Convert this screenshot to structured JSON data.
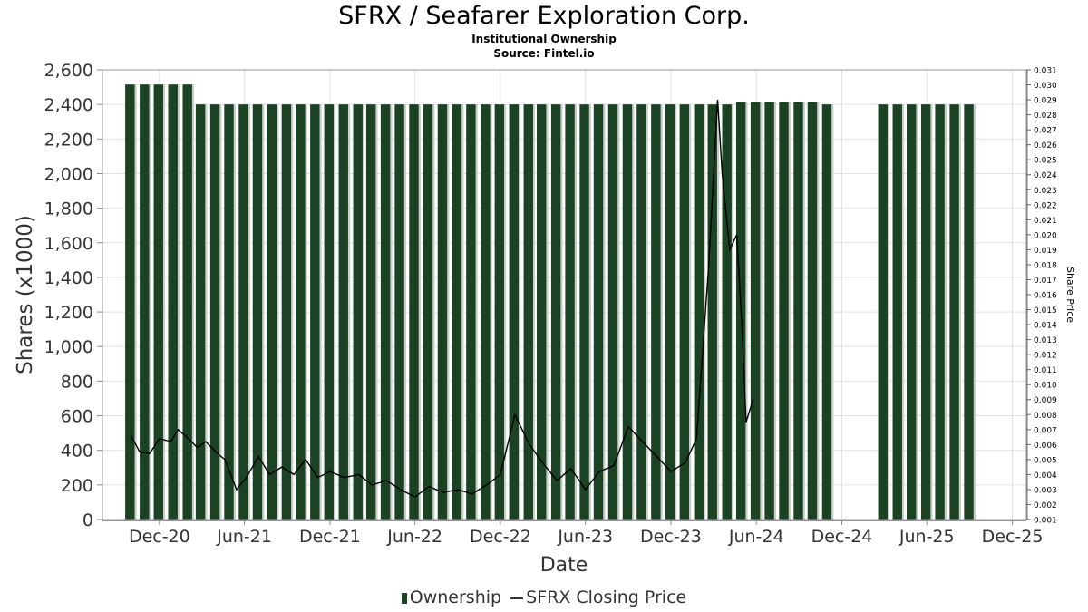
{
  "chart_data": {
    "type": "bar",
    "title": "SFRX / Seafarer Exploration Corp.",
    "subtitle": "Institutional Ownership",
    "source": "Source: Fintel.io",
    "xlabel": "Date",
    "ylabel": "Shares (x1000)",
    "y2label": "Share Price",
    "grid": true,
    "legend_position": "bottom",
    "colors": {
      "bar": "#1a4223",
      "bar_highlight": "#c8cfc8",
      "line": "#000000",
      "grid": "#e2e2e2"
    },
    "x_range": [
      "2020-08-01",
      "2025-12-31"
    ],
    "ylim": [
      0,
      2600
    ],
    "y2lim": [
      0.001,
      0.031
    ],
    "x_ticks": [
      {
        "label": "Dec-20",
        "date": "2020-12-01"
      },
      {
        "label": "Jun-21",
        "date": "2021-06-01"
      },
      {
        "label": "Dec-21",
        "date": "2021-12-01"
      },
      {
        "label": "Jun-22",
        "date": "2022-06-01"
      },
      {
        "label": "Dec-22",
        "date": "2022-12-01"
      },
      {
        "label": "Jun-23",
        "date": "2023-06-01"
      },
      {
        "label": "Dec-23",
        "date": "2023-12-01"
      },
      {
        "label": "Jun-24",
        "date": "2024-06-01"
      },
      {
        "label": "Dec-24",
        "date": "2024-12-01"
      },
      {
        "label": "Jun-25",
        "date": "2025-06-01"
      },
      {
        "label": "Dec-25",
        "date": "2025-12-01"
      }
    ],
    "y_ticks": [
      {
        "value": 0,
        "label": "0"
      },
      {
        "value": 200,
        "label": "200"
      },
      {
        "value": 400,
        "label": "400"
      },
      {
        "value": 600,
        "label": "600"
      },
      {
        "value": 800,
        "label": "800"
      },
      {
        "value": 1000,
        "label": "1,000"
      },
      {
        "value": 1200,
        "label": "1,200"
      },
      {
        "value": 1400,
        "label": "1,400"
      },
      {
        "value": 1600,
        "label": "1,600"
      },
      {
        "value": 1800,
        "label": "1,800"
      },
      {
        "value": 2000,
        "label": "2,000"
      },
      {
        "value": 2200,
        "label": "2,200"
      },
      {
        "value": 2400,
        "label": "2,400"
      },
      {
        "value": 2600,
        "label": "2,600"
      }
    ],
    "y2_ticks": [
      "0.001",
      "0.002",
      "0.003",
      "0.004",
      "0.005",
      "0.006",
      "0.007",
      "0.008",
      "0.009",
      "0.010",
      "0.011",
      "0.012",
      "0.013",
      "0.014",
      "0.015",
      "0.016",
      "0.017",
      "0.018",
      "0.019",
      "0.020",
      "0.021",
      "0.022",
      "0.023",
      "0.024",
      "0.025",
      "0.026",
      "0.027",
      "0.028",
      "0.029",
      "0.030",
      "0.031"
    ],
    "series": [
      {
        "name": "Ownership",
        "type": "bar",
        "points": [
          {
            "x": "2020-10-01",
            "y": 2515
          },
          {
            "x": "2020-11-01",
            "y": 2515
          },
          {
            "x": "2020-12-01",
            "y": 2515
          },
          {
            "x": "2021-01-01",
            "y": 2515
          },
          {
            "x": "2021-02-01",
            "y": 2515
          },
          {
            "x": "2021-03-01",
            "y": 2400
          },
          {
            "x": "2021-04-01",
            "y": 2400
          },
          {
            "x": "2021-05-01",
            "y": 2400
          },
          {
            "x": "2021-06-01",
            "y": 2400
          },
          {
            "x": "2021-07-01",
            "y": 2400
          },
          {
            "x": "2021-08-01",
            "y": 2400
          },
          {
            "x": "2021-09-01",
            "y": 2400
          },
          {
            "x": "2021-10-01",
            "y": 2400
          },
          {
            "x": "2021-11-01",
            "y": 2400
          },
          {
            "x": "2021-12-01",
            "y": 2400
          },
          {
            "x": "2022-01-01",
            "y": 2400
          },
          {
            "x": "2022-02-01",
            "y": 2400
          },
          {
            "x": "2022-03-01",
            "y": 2400
          },
          {
            "x": "2022-04-01",
            "y": 2400
          },
          {
            "x": "2022-05-01",
            "y": 2400
          },
          {
            "x": "2022-06-01",
            "y": 2400
          },
          {
            "x": "2022-07-01",
            "y": 2400
          },
          {
            "x": "2022-08-01",
            "y": 2400
          },
          {
            "x": "2022-09-01",
            "y": 2400
          },
          {
            "x": "2022-10-01",
            "y": 2400
          },
          {
            "x": "2022-11-01",
            "y": 2400
          },
          {
            "x": "2022-12-01",
            "y": 2400
          },
          {
            "x": "2023-01-01",
            "y": 2400
          },
          {
            "x": "2023-02-01",
            "y": 2400
          },
          {
            "x": "2023-03-01",
            "y": 2400
          },
          {
            "x": "2023-04-01",
            "y": 2400
          },
          {
            "x": "2023-05-01",
            "y": 2400
          },
          {
            "x": "2023-06-01",
            "y": 2400
          },
          {
            "x": "2023-07-01",
            "y": 2400
          },
          {
            "x": "2023-08-01",
            "y": 2400
          },
          {
            "x": "2023-09-01",
            "y": 2400
          },
          {
            "x": "2023-10-01",
            "y": 2400
          },
          {
            "x": "2023-11-01",
            "y": 2400
          },
          {
            "x": "2023-12-01",
            "y": 2400
          },
          {
            "x": "2024-01-01",
            "y": 2400
          },
          {
            "x": "2024-02-01",
            "y": 2400
          },
          {
            "x": "2024-03-01",
            "y": 2400
          },
          {
            "x": "2024-04-01",
            "y": 2400
          },
          {
            "x": "2024-05-01",
            "y": 2415
          },
          {
            "x": "2024-06-01",
            "y": 2415
          },
          {
            "x": "2024-07-01",
            "y": 2415
          },
          {
            "x": "2024-08-01",
            "y": 2415
          },
          {
            "x": "2024-09-01",
            "y": 2415
          },
          {
            "x": "2024-10-01",
            "y": 2415
          },
          {
            "x": "2024-11-01",
            "y": 2400
          },
          {
            "x": "2025-03-01",
            "y": 2400
          },
          {
            "x": "2025-04-01",
            "y": 2400
          },
          {
            "x": "2025-05-01",
            "y": 2400
          },
          {
            "x": "2025-06-01",
            "y": 2400
          },
          {
            "x": "2025-07-01",
            "y": 2400
          },
          {
            "x": "2025-08-01",
            "y": 2400
          },
          {
            "x": "2025-09-01",
            "y": 2400
          }
        ]
      },
      {
        "name": "SFRX Closing Price",
        "type": "line",
        "axis": "right",
        "points": [
          {
            "x": "2020-10-01",
            "y": 0.0066
          },
          {
            "x": "2020-10-20",
            "y": 0.0055
          },
          {
            "x": "2020-11-10",
            "y": 0.0054
          },
          {
            "x": "2020-12-01",
            "y": 0.0064
          },
          {
            "x": "2020-12-25",
            "y": 0.0062
          },
          {
            "x": "2021-01-10",
            "y": 0.007
          },
          {
            "x": "2021-02-01",
            "y": 0.0064
          },
          {
            "x": "2021-02-20",
            "y": 0.0058
          },
          {
            "x": "2021-03-10",
            "y": 0.0062
          },
          {
            "x": "2021-04-01",
            "y": 0.0055
          },
          {
            "x": "2021-04-20",
            "y": 0.005
          },
          {
            "x": "2021-05-15",
            "y": 0.003
          },
          {
            "x": "2021-06-05",
            "y": 0.0038
          },
          {
            "x": "2021-07-01",
            "y": 0.0052
          },
          {
            "x": "2021-07-25",
            "y": 0.004
          },
          {
            "x": "2021-08-20",
            "y": 0.0045
          },
          {
            "x": "2021-09-15",
            "y": 0.004
          },
          {
            "x": "2021-10-10",
            "y": 0.005
          },
          {
            "x": "2021-11-05",
            "y": 0.0038
          },
          {
            "x": "2021-12-01",
            "y": 0.0042
          },
          {
            "x": "2022-01-01",
            "y": 0.0038
          },
          {
            "x": "2022-02-01",
            "y": 0.004
          },
          {
            "x": "2022-03-01",
            "y": 0.0033
          },
          {
            "x": "2022-04-01",
            "y": 0.0036
          },
          {
            "x": "2022-05-01",
            "y": 0.003
          },
          {
            "x": "2022-06-01",
            "y": 0.0025
          },
          {
            "x": "2022-07-01",
            "y": 0.0032
          },
          {
            "x": "2022-08-01",
            "y": 0.0028
          },
          {
            "x": "2022-09-01",
            "y": 0.003
          },
          {
            "x": "2022-10-01",
            "y": 0.0027
          },
          {
            "x": "2022-11-01",
            "y": 0.0033
          },
          {
            "x": "2022-12-01",
            "y": 0.004
          },
          {
            "x": "2023-01-01",
            "y": 0.008
          },
          {
            "x": "2023-02-01",
            "y": 0.006
          },
          {
            "x": "2023-03-01",
            "y": 0.0048
          },
          {
            "x": "2023-04-01",
            "y": 0.0036
          },
          {
            "x": "2023-05-01",
            "y": 0.0044
          },
          {
            "x": "2023-06-01",
            "y": 0.003
          },
          {
            "x": "2023-07-01",
            "y": 0.0042
          },
          {
            "x": "2023-08-01",
            "y": 0.0046
          },
          {
            "x": "2023-09-01",
            "y": 0.0072
          },
          {
            "x": "2023-10-01",
            "y": 0.0062
          },
          {
            "x": "2023-11-01",
            "y": 0.0052
          },
          {
            "x": "2023-12-01",
            "y": 0.0042
          },
          {
            "x": "2024-01-01",
            "y": 0.0048
          },
          {
            "x": "2024-01-25",
            "y": 0.0064
          },
          {
            "x": "2024-02-20",
            "y": 0.018
          },
          {
            "x": "2024-03-10",
            "y": 0.029
          },
          {
            "x": "2024-03-20",
            "y": 0.024
          },
          {
            "x": "2024-04-05",
            "y": 0.019
          },
          {
            "x": "2024-04-20",
            "y": 0.02
          },
          {
            "x": "2024-05-01",
            "y": 0.014
          },
          {
            "x": "2024-05-10",
            "y": 0.0075
          },
          {
            "x": "2024-05-25",
            "y": 0.009
          }
        ]
      }
    ]
  }
}
